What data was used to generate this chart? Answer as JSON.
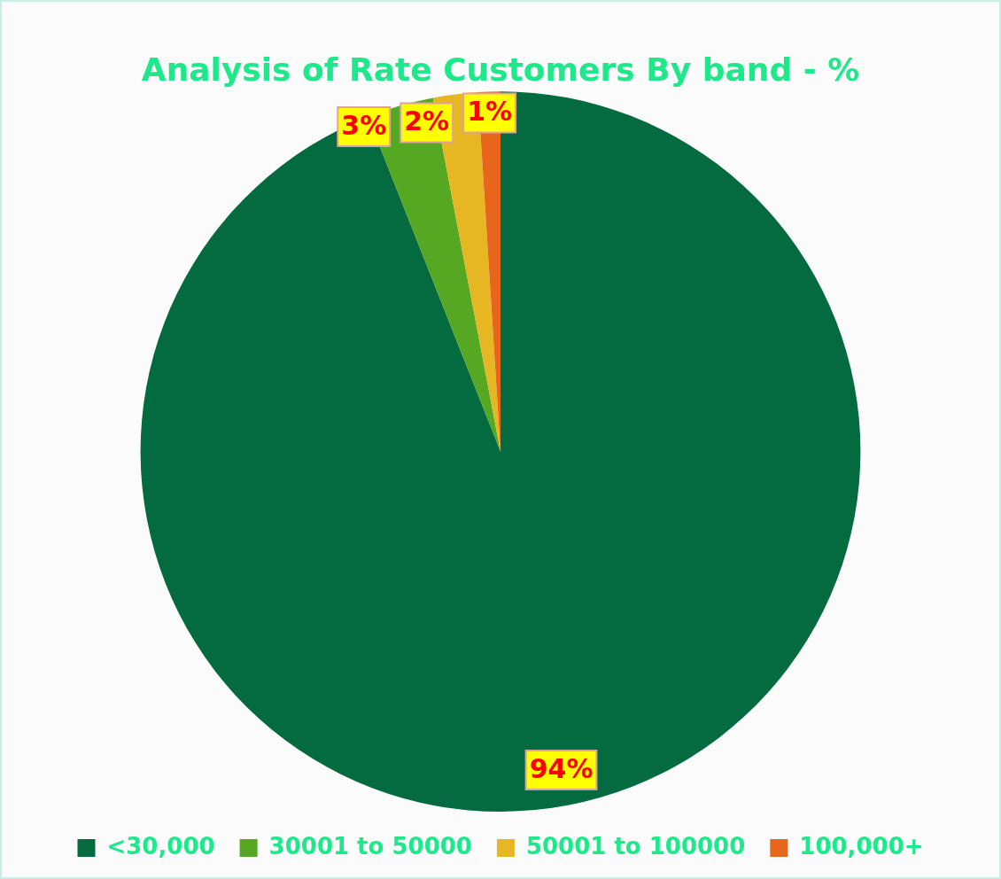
{
  "chart_data": {
    "type": "pie",
    "title": "Analysis of Rate Customers By band - %",
    "categories": [
      "<30,000",
      "30001 to 50000",
      "50001 to 100000",
      "100,000+"
    ],
    "values": [
      94,
      3,
      2,
      1
    ],
    "colors": [
      "#036b3f",
      "#56a822",
      "#e6b722",
      "#e8661c"
    ],
    "value_labels": [
      "94%",
      "3%",
      "2%",
      "1%"
    ],
    "legend": "bottom"
  }
}
